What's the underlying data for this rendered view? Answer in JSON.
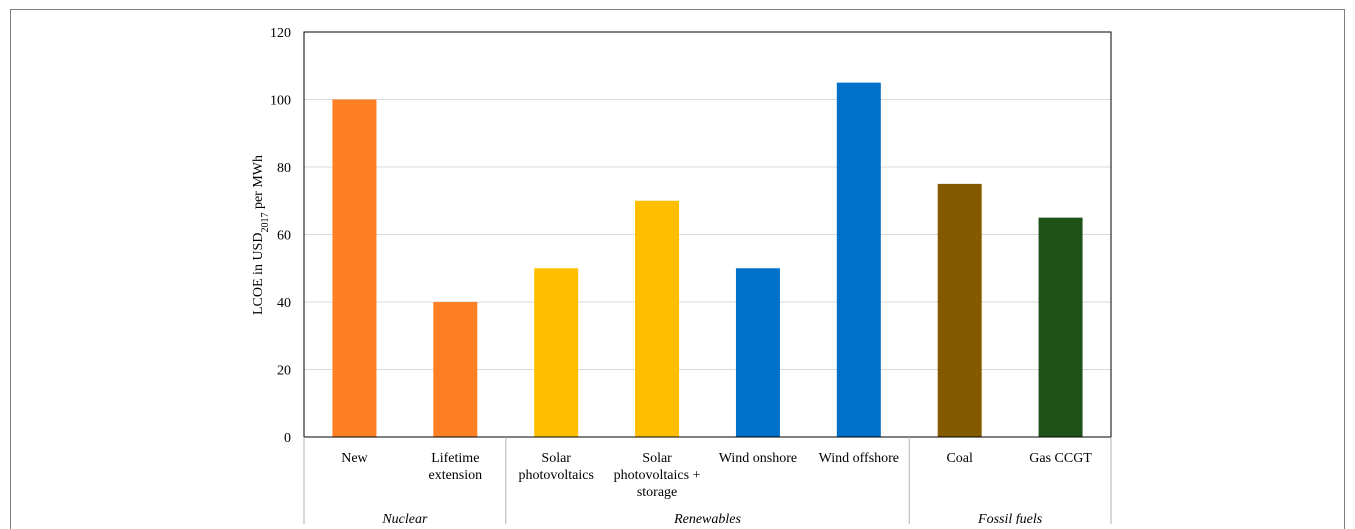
{
  "chart_data": {
    "type": "bar",
    "ylabel": "LCOE in USD",
    "ylabel_sub": "2017",
    "ylabel_suffix": " per MWh",
    "ylim": [
      0,
      120
    ],
    "yticks": [
      0,
      20,
      40,
      60,
      80,
      100,
      120
    ],
    "grid": true,
    "categories": [
      {
        "lines": [
          "New"
        ],
        "value": 100,
        "color": "#FF7F24"
      },
      {
        "lines": [
          "Lifetime",
          "extension"
        ],
        "value": 40,
        "color": "#FF7F24"
      },
      {
        "lines": [
          "Solar",
          "photovoltaics"
        ],
        "value": 50,
        "color": "#FFBF00"
      },
      {
        "lines": [
          "Solar",
          "photovoltaics +",
          "storage"
        ],
        "value": 70,
        "color": "#FFBF00"
      },
      {
        "lines": [
          "Wind onshore"
        ],
        "value": 50,
        "color": "#0070C8"
      },
      {
        "lines": [
          "Wind offshore"
        ],
        "value": 105,
        "color": "#0070C8"
      },
      {
        "lines": [
          "Coal"
        ],
        "value": 75,
        "color": "#845A00"
      },
      {
        "lines": [
          "Gas CCGT"
        ],
        "value": 65,
        "color": "#1E5218"
      }
    ],
    "groups": [
      {
        "label": "Nuclear",
        "span": [
          0,
          1
        ]
      },
      {
        "label": "Renewables",
        "span": [
          2,
          5
        ]
      },
      {
        "label": "Fossil fuels",
        "span": [
          6,
          7
        ]
      }
    ]
  }
}
